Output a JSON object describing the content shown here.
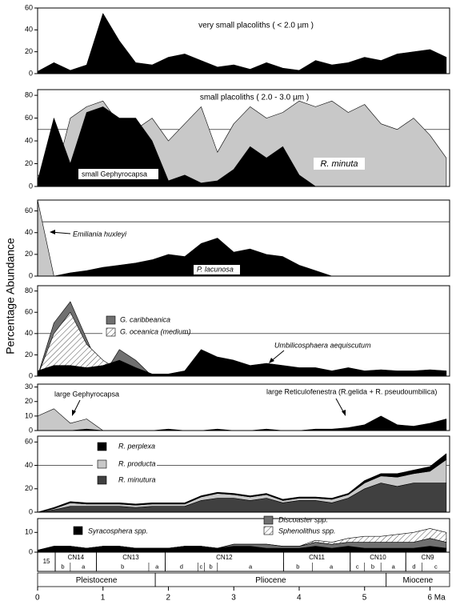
{
  "figure": {
    "ylabel": "Percentage Abundance"
  },
  "chart_data": [
    {
      "type": "area",
      "title": "very small placoliths ( < 2.0 µm )",
      "x": [
        0,
        0.25,
        0.5,
        0.75,
        1,
        1.25,
        1.5,
        1.75,
        2,
        2.25,
        2.5,
        2.75,
        3,
        3.25,
        3.5,
        3.75,
        4,
        4.25,
        4.5,
        4.75,
        5,
        5.25,
        5.5,
        5.75,
        6,
        6.25
      ],
      "xlim": [
        0,
        6.3
      ],
      "ylim": [
        0,
        60
      ],
      "yticks": [
        0,
        20,
        40,
        60
      ],
      "series": [
        {
          "name": "very small placoliths",
          "color": "#000000",
          "values": [
            2,
            10,
            3,
            8,
            55,
            30,
            10,
            8,
            15,
            18,
            12,
            6,
            8,
            4,
            10,
            5,
            3,
            12,
            8,
            10,
            15,
            12,
            18,
            20,
            22,
            15
          ]
        }
      ]
    },
    {
      "type": "area",
      "title": "small placoliths ( 2.0 - 3.0 µm )",
      "x": [
        0,
        0.25,
        0.5,
        0.75,
        1,
        1.25,
        1.5,
        1.75,
        2,
        2.25,
        2.5,
        2.75,
        3,
        3.25,
        3.5,
        3.75,
        4,
        4.25,
        4.5,
        4.75,
        5,
        5.25,
        5.5,
        5.75,
        6,
        6.25
      ],
      "xlim": [
        0,
        6.3
      ],
      "ylim": [
        0,
        85
      ],
      "yticks": [
        0,
        20,
        40,
        60,
        80
      ],
      "hlines": [
        50
      ],
      "series": [
        {
          "name": "R. minuta",
          "color": "#c8c8c8",
          "values": [
            10,
            5,
            60,
            70,
            75,
            55,
            50,
            60,
            40,
            55,
            70,
            30,
            55,
            70,
            60,
            65,
            75,
            70,
            75,
            65,
            72,
            55,
            50,
            60,
            45,
            25
          ]
        },
        {
          "name": "small Gephyrocapsa",
          "color": "#000000",
          "values": [
            5,
            60,
            20,
            65,
            70,
            60,
            60,
            40,
            5,
            10,
            3,
            5,
            15,
            35,
            25,
            35,
            10,
            0,
            0,
            0,
            0,
            0,
            0,
            0,
            0,
            0
          ]
        }
      ]
    },
    {
      "type": "area",
      "x": [
        0,
        0.25,
        0.5,
        0.75,
        1,
        1.25,
        1.5,
        1.75,
        2,
        2.25,
        2.5,
        2.75,
        3,
        3.25,
        3.5,
        3.75,
        4,
        4.25,
        4.5,
        4.75,
        5,
        5.25,
        5.5,
        5.75,
        6,
        6.25
      ],
      "xlim": [
        0,
        6.3
      ],
      "ylim": [
        0,
        70
      ],
      "yticks": [
        0,
        20,
        40,
        60
      ],
      "hlines": [
        50
      ],
      "series": [
        {
          "name": "Emiliania huxleyi",
          "color": "#c8c8c8",
          "values": [
            70,
            0,
            0,
            0,
            0,
            0,
            0,
            0,
            0,
            0,
            0,
            0,
            0,
            0,
            0,
            0,
            0,
            0,
            0,
            0,
            0,
            0,
            0,
            0,
            0,
            0
          ]
        },
        {
          "name": "P. lacunosa",
          "color": "#000000",
          "values": [
            0,
            0,
            3,
            5,
            8,
            10,
            12,
            15,
            20,
            18,
            30,
            35,
            22,
            25,
            20,
            18,
            10,
            5,
            0,
            0,
            0,
            0,
            0,
            0,
            0,
            0
          ]
        }
      ]
    },
    {
      "type": "area",
      "x": [
        0,
        0.25,
        0.5,
        0.75,
        1,
        1.25,
        1.5,
        1.75,
        2,
        2.25,
        2.5,
        2.75,
        3,
        3.25,
        3.5,
        3.75,
        4,
        4.25,
        4.5,
        4.75,
        5,
        5.25,
        5.5,
        5.75,
        6,
        6.25
      ],
      "xlim": [
        0,
        6.3
      ],
      "ylim": [
        0,
        85
      ],
      "yticks": [
        0,
        20,
        40,
        60,
        80
      ],
      "hlines": [
        40
      ],
      "series": [
        {
          "name": "G. caribbeanica",
          "color": "#707070",
          "values": [
            0,
            50,
            70,
            35,
            0,
            25,
            15,
            0,
            0,
            0,
            0,
            0,
            0,
            0,
            0,
            0,
            0,
            0,
            0,
            0,
            0,
            0,
            0,
            0,
            0,
            0
          ]
        },
        {
          "name": "G. oceanica (medium)",
          "color": "#ffffff",
          "pattern": "hatch",
          "values": [
            0,
            40,
            60,
            30,
            15,
            5,
            0,
            0,
            0,
            0,
            0,
            0,
            0,
            0,
            0,
            0,
            0,
            0,
            0,
            0,
            0,
            0,
            0,
            0,
            0,
            0
          ]
        },
        {
          "name": "Umbilicosphaera aequiscutum",
          "color": "#000000",
          "values": [
            5,
            10,
            10,
            8,
            10,
            15,
            8,
            2,
            2,
            5,
            25,
            18,
            15,
            10,
            12,
            10,
            8,
            8,
            5,
            8,
            5,
            6,
            5,
            5,
            6,
            5
          ]
        }
      ]
    },
    {
      "type": "area",
      "x": [
        0,
        0.25,
        0.5,
        0.75,
        1,
        1.25,
        1.5,
        1.75,
        2,
        2.25,
        2.5,
        2.75,
        3,
        3.25,
        3.5,
        3.75,
        4,
        4.25,
        4.5,
        4.75,
        5,
        5.25,
        5.5,
        5.75,
        6,
        6.25
      ],
      "xlim": [
        0,
        6.3
      ],
      "ylim": [
        0,
        32
      ],
      "yticks": [
        0,
        10,
        20,
        30
      ],
      "series": [
        {
          "name": "large Gephyrocapsa",
          "color": "#c8c8c8",
          "values": [
            10,
            15,
            5,
            8,
            0,
            0,
            0,
            0,
            0,
            0,
            0,
            0,
            0,
            0,
            0,
            0,
            0,
            0,
            0,
            0,
            0,
            0,
            0,
            0,
            0,
            0
          ]
        },
        {
          "name": "large Reticulofenestra (R.gelida + R. pseudoumbilica)",
          "color": "#000000",
          "values": [
            0,
            0,
            0,
            1,
            0,
            0,
            0,
            0,
            1,
            0,
            0,
            1,
            0,
            0,
            1,
            0,
            0,
            1,
            1,
            2,
            4,
            10,
            4,
            3,
            5,
            8
          ]
        }
      ]
    },
    {
      "type": "area",
      "stacked": true,
      "x": [
        0,
        0.25,
        0.5,
        0.75,
        1,
        1.25,
        1.5,
        1.75,
        2,
        2.25,
        2.5,
        2.75,
        3,
        3.25,
        3.5,
        3.75,
        4,
        4.25,
        4.5,
        4.75,
        5,
        5.25,
        5.5,
        5.75,
        6,
        6.25
      ],
      "xlim": [
        0,
        6.3
      ],
      "ylim": [
        0,
        65
      ],
      "yticks": [
        0,
        20,
        40,
        60
      ],
      "hlines": [
        40
      ],
      "series": [
        {
          "name": "R. minutura",
          "color": "#404040",
          "values": [
            0,
            2,
            5,
            5,
            5,
            5,
            4,
            5,
            5,
            5,
            10,
            12,
            12,
            10,
            12,
            8,
            10,
            10,
            8,
            12,
            20,
            25,
            22,
            25,
            25,
            25
          ]
        },
        {
          "name": "R. producta",
          "color": "#c8c8c8",
          "values": [
            0,
            1,
            3,
            2,
            2,
            2,
            2,
            2,
            2,
            2,
            3,
            4,
            3,
            3,
            3,
            2,
            2,
            2,
            3,
            3,
            5,
            6,
            8,
            8,
            10,
            20
          ]
        },
        {
          "name": "R. perplexa",
          "color": "#000000",
          "values": [
            0,
            1,
            1,
            1,
            1,
            1,
            1,
            1,
            1,
            1,
            1,
            1,
            1,
            1,
            1,
            1,
            1,
            1,
            1,
            1,
            2,
            2,
            3,
            3,
            4,
            5
          ]
        }
      ]
    },
    {
      "type": "area",
      "stacked": true,
      "x": [
        0,
        0.25,
        0.5,
        0.75,
        1,
        1.25,
        1.5,
        1.75,
        2,
        2.25,
        2.5,
        2.75,
        3,
        3.25,
        3.5,
        3.75,
        4,
        4.25,
        4.5,
        4.75,
        5,
        5.25,
        5.5,
        5.75,
        6,
        6.25
      ],
      "xlim": [
        0,
        6.3
      ],
      "ylim": [
        0,
        17
      ],
      "yticks": [
        0,
        10
      ],
      "xticks": [
        0,
        1,
        2,
        3,
        4,
        5,
        {
          "value": 6,
          "label": "6 Ma"
        }
      ],
      "series": [
        {
          "name": "Syracosphera spp.",
          "color": "#000000",
          "values": [
            1,
            3,
            3,
            2,
            3,
            3,
            2,
            2,
            2,
            3,
            3,
            2,
            3,
            3,
            2,
            2,
            2,
            3,
            2,
            3,
            2,
            2,
            2,
            2,
            3,
            2
          ]
        },
        {
          "name": "Discoaster spp.",
          "color": "#707070",
          "values": [
            0,
            0,
            0,
            0,
            0,
            0,
            0,
            0,
            0,
            0,
            0,
            0,
            1,
            1,
            2,
            1,
            1,
            2,
            2,
            2,
            3,
            3,
            3,
            3,
            4,
            3
          ]
        },
        {
          "name": "Sphenolithus spp.",
          "color": "#ffffff",
          "pattern": "hatch",
          "values": [
            0,
            0,
            0,
            0,
            0,
            0,
            0,
            0,
            0,
            0,
            0,
            0,
            0,
            0,
            0,
            0,
            0,
            1,
            1,
            2,
            3,
            3,
            4,
            5,
            5,
            5
          ]
        }
      ]
    }
  ],
  "stratigraphy": {
    "zones": [
      {
        "label": "15",
        "start": 0,
        "end": 0.27
      },
      {
        "label": "CN14",
        "start": 0.27,
        "end": 0.9,
        "subzones": [
          {
            "label": "b",
            "start": 0.27,
            "end": 0.5
          },
          {
            "label": "a",
            "start": 0.5,
            "end": 0.9
          }
        ]
      },
      {
        "label": "CN13",
        "start": 0.9,
        "end": 1.95,
        "subzones": [
          {
            "label": "b",
            "start": 0.9,
            "end": 1.7
          },
          {
            "label": "a",
            "start": 1.7,
            "end": 1.95
          }
        ]
      },
      {
        "label": "CN12",
        "start": 1.95,
        "end": 3.76,
        "subzones": [
          {
            "label": "d",
            "start": 1.95,
            "end": 2.45
          },
          {
            "label": "c",
            "start": 2.45,
            "end": 2.55
          },
          {
            "label": "b",
            "start": 2.55,
            "end": 2.75
          },
          {
            "label": "a",
            "start": 2.75,
            "end": 3.76
          }
        ]
      },
      {
        "label": "CN11",
        "start": 3.76,
        "end": 4.78,
        "subzones": [
          {
            "label": "b",
            "start": 3.76,
            "end": 4.2
          },
          {
            "label": "a",
            "start": 4.2,
            "end": 4.78
          }
        ]
      },
      {
        "label": "CN10",
        "start": 4.78,
        "end": 5.63,
        "subzones": [
          {
            "label": "c",
            "start": 4.78,
            "end": 5.0
          },
          {
            "label": "b",
            "start": 5.0,
            "end": 5.25
          },
          {
            "label": "a",
            "start": 5.25,
            "end": 5.63
          }
        ]
      },
      {
        "label": "CN9",
        "start": 5.63,
        "end": 6.3,
        "subzones": [
          {
            "label": "d",
            "start": 5.63,
            "end": 5.88
          },
          {
            "label": "c",
            "start": 5.88,
            "end": 6.3
          }
        ]
      }
    ],
    "epochs": [
      {
        "label": "Pleistocene",
        "start": 0,
        "end": 1.8
      },
      {
        "label": "Pliocene",
        "start": 1.8,
        "end": 5.33
      },
      {
        "label": "Miocene",
        "start": 5.33,
        "end": 6.3
      }
    ]
  }
}
